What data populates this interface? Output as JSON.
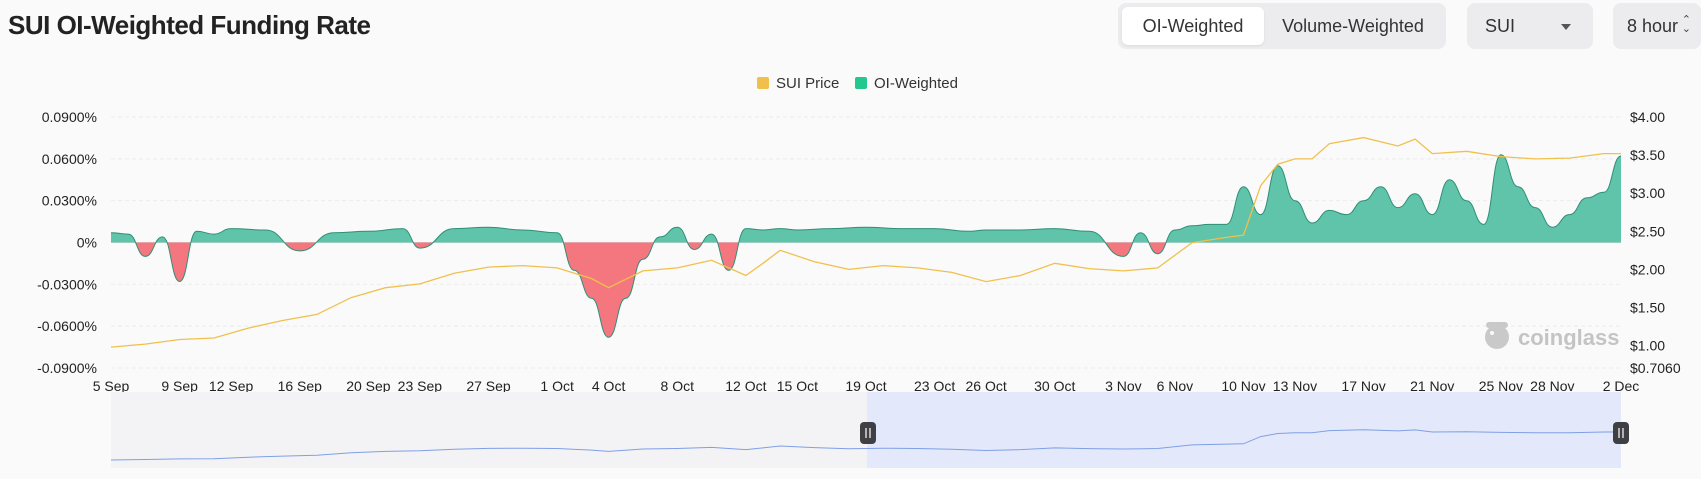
{
  "header": {
    "title": "SUI OI-Weighted Funding Rate",
    "weight_tabs": [
      "OI-Weighted",
      "Volume-Weighted"
    ],
    "active_tab": "OI-Weighted",
    "coin_select": "SUI",
    "interval_select": "8 hour"
  },
  "watermark": "coinglass",
  "colors": {
    "positive": "#5fc4a9",
    "negative": "#f4777f",
    "price": "#f0c04d",
    "navigator": "#e3e9fb"
  },
  "chart_data": {
    "type": "area",
    "title": "SUI OI-Weighted Funding Rate",
    "legend": [
      "SUI Price",
      "OI-Weighted"
    ],
    "legend_position": "top-center",
    "grid": true,
    "x_tick_labels": [
      "5 Sep",
      "9 Sep",
      "12 Sep",
      "16 Sep",
      "20 Sep",
      "23 Sep",
      "27 Sep",
      "1 Oct",
      "4 Oct",
      "8 Oct",
      "12 Oct",
      "15 Oct",
      "19 Oct",
      "23 Oct",
      "26 Oct",
      "30 Oct",
      "3 Nov",
      "6 Nov",
      "10 Nov",
      "13 Nov",
      "17 Nov",
      "21 Nov",
      "25 Nov",
      "28 Nov",
      "2 Dec"
    ],
    "y_left": {
      "ticks": [
        0.09,
        0.06,
        0.03,
        0,
        -0.03,
        -0.06,
        -0.09
      ],
      "tick_labels": [
        "0.0900%",
        "0.0600%",
        "0.0300%",
        "0%",
        "-0.0300%",
        "-0.0600%",
        "-0.0900%"
      ],
      "range": [
        -0.09,
        0.09
      ]
    },
    "y_right": {
      "ticks": [
        4.0,
        3.5,
        3.0,
        2.5,
        2.0,
        1.5,
        1.0,
        0.706
      ],
      "tick_labels": [
        "$4.00",
        "$3.50",
        "$3.00",
        "$2.50",
        "$2.00",
        "$1.50",
        "$1.00",
        "$0.7060"
      ],
      "range": [
        0.706,
        4.0
      ]
    },
    "series": [
      {
        "name": "OI-Weighted",
        "axis": "left",
        "x": [
          "5 Sep",
          "6 Sep",
          "7 Sep",
          "8 Sep",
          "9 Sep",
          "10 Sep",
          "11 Sep",
          "12 Sep",
          "14 Sep",
          "16 Sep",
          "18 Sep",
          "20 Sep",
          "22 Sep",
          "23 Sep",
          "25 Sep",
          "27 Sep",
          "29 Sep",
          "1 Oct",
          "2 Oct",
          "3 Oct",
          "4 Oct",
          "5 Oct",
          "6 Oct",
          "7 Oct",
          "8 Oct",
          "9 Oct",
          "10 Oct",
          "11 Oct",
          "12 Oct",
          "13 Oct",
          "14 Oct",
          "15 Oct",
          "17 Oct",
          "19 Oct",
          "21 Oct",
          "23 Oct",
          "25 Oct",
          "26 Oct",
          "28 Oct",
          "30 Oct",
          "1 Nov",
          "3 Nov",
          "4 Nov",
          "5 Nov",
          "6 Nov",
          "7 Nov",
          "8 Nov",
          "9 Nov",
          "10 Nov",
          "11 Nov",
          "12 Nov",
          "13 Nov",
          "14 Nov",
          "15 Nov",
          "16 Nov",
          "17 Nov",
          "18 Nov",
          "19 Nov",
          "20 Nov",
          "21 Nov",
          "22 Nov",
          "23 Nov",
          "24 Nov",
          "25 Nov",
          "26 Nov",
          "27 Nov",
          "28 Nov",
          "29 Nov",
          "30 Nov",
          "1 Dec",
          "2 Dec"
        ],
        "values": [
          0.007,
          0.006,
          -0.01,
          0.004,
          -0.028,
          0.008,
          0.006,
          0.01,
          0.009,
          -0.006,
          0.007,
          0.008,
          0.01,
          -0.004,
          0.01,
          0.011,
          0.009,
          0.007,
          -0.02,
          -0.04,
          -0.068,
          -0.04,
          -0.012,
          0.004,
          0.011,
          -0.005,
          0.006,
          -0.02,
          0.01,
          0.009,
          0.01,
          0.009,
          0.01,
          0.011,
          0.01,
          0.01,
          0.008,
          0.009,
          0.009,
          0.01,
          0.008,
          -0.01,
          0.007,
          -0.008,
          0.009,
          0.012,
          0.013,
          0.013,
          0.04,
          0.02,
          0.055,
          0.03,
          0.014,
          0.023,
          0.02,
          0.03,
          0.04,
          0.025,
          0.035,
          0.02,
          0.045,
          0.03,
          0.013,
          0.063,
          0.04,
          0.025,
          0.011,
          0.02,
          0.032,
          0.036,
          0.062
        ]
      },
      {
        "name": "SUI Price",
        "axis": "right",
        "x": [
          "5 Sep",
          "7 Sep",
          "9 Sep",
          "11 Sep",
          "13 Sep",
          "15 Sep",
          "17 Sep",
          "19 Sep",
          "21 Sep",
          "23 Sep",
          "25 Sep",
          "27 Sep",
          "29 Sep",
          "1 Oct",
          "3 Oct",
          "4 Oct",
          "6 Oct",
          "8 Oct",
          "10 Oct",
          "12 Oct",
          "13 Oct",
          "14 Oct",
          "16 Oct",
          "18 Oct",
          "20 Oct",
          "22 Oct",
          "24 Oct",
          "26 Oct",
          "28 Oct",
          "30 Oct",
          "1 Nov",
          "3 Nov",
          "5 Nov",
          "7 Nov",
          "9 Nov",
          "10 Nov",
          "11 Nov",
          "12 Nov",
          "13 Nov",
          "14 Nov",
          "15 Nov",
          "17 Nov",
          "19 Nov",
          "20 Nov",
          "21 Nov",
          "23 Nov",
          "25 Nov",
          "27 Nov",
          "29 Nov",
          "1 Dec",
          "2 Dec"
        ],
        "values": [
          0.98,
          1.02,
          1.08,
          1.1,
          1.23,
          1.33,
          1.41,
          1.63,
          1.76,
          1.81,
          1.95,
          2.03,
          2.05,
          2.02,
          1.88,
          1.76,
          1.98,
          2.02,
          2.12,
          1.92,
          2.08,
          2.25,
          2.1,
          2.0,
          2.05,
          2.02,
          1.96,
          1.84,
          1.92,
          2.08,
          2.01,
          1.98,
          2.02,
          2.35,
          2.42,
          2.45,
          3.1,
          3.38,
          3.45,
          3.45,
          3.65,
          3.73,
          3.62,
          3.71,
          3.52,
          3.55,
          3.48,
          3.45,
          3.46,
          3.52,
          3.52
        ]
      }
    ]
  }
}
